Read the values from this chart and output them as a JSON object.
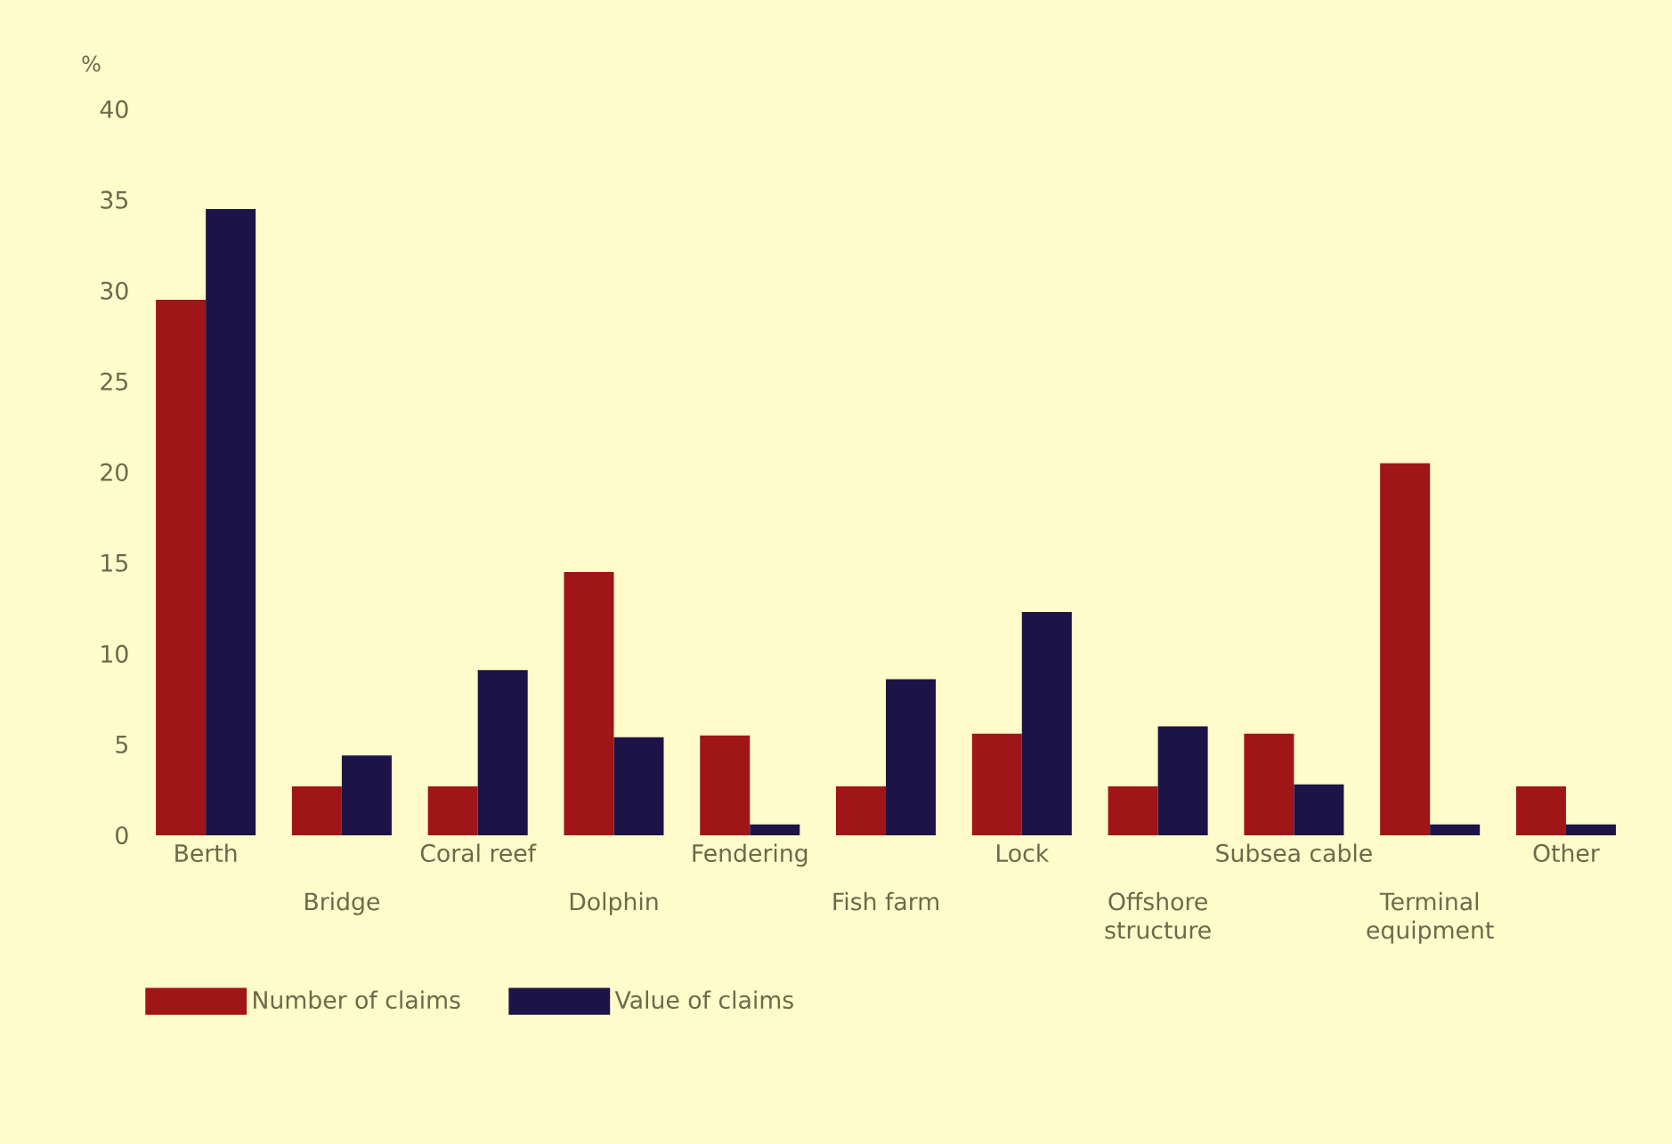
{
  "chart_data": {
    "type": "bar",
    "ylabel": "%",
    "categories": [
      "Berth",
      "Bridge",
      "Coral reef",
      "Dolphin",
      "Fendering",
      "Fish farm",
      "Lock",
      "Offshore structure",
      "Subsea cable",
      "Terminal equipment",
      "Other"
    ],
    "series": [
      {
        "name": "Number of claims",
        "color": "#a01518",
        "values": [
          29.5,
          2.7,
          2.7,
          14.5,
          5.5,
          2.7,
          5.6,
          2.7,
          5.6,
          20.5,
          2.7
        ]
      },
      {
        "name": "Value of claims",
        "color": "#1c1446",
        "values": [
          34.5,
          4.4,
          9.1,
          5.4,
          0.6,
          8.6,
          12.3,
          6.0,
          2.8,
          0.6,
          0.6
        ]
      }
    ],
    "ylim": [
      0,
      40
    ],
    "yticks": [
      0,
      5,
      10,
      15,
      20,
      25,
      30,
      35,
      40
    ],
    "grid": false,
    "legend": "bottom left"
  }
}
